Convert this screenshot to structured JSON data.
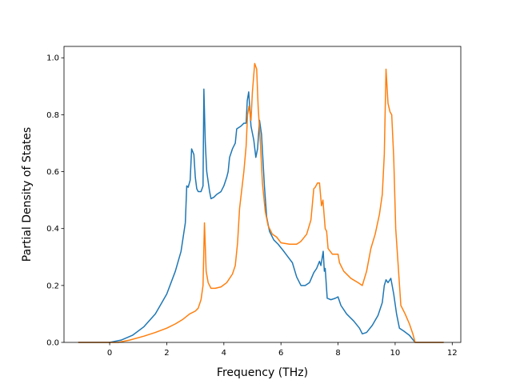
{
  "chart_data": {
    "type": "line",
    "title": "",
    "xlabel": "Frequency (THz)",
    "ylabel": "Partial Density of States",
    "xlim": [
      -1.6,
      12.3
    ],
    "ylim": [
      0.0,
      1.04
    ],
    "x_ticks": [
      0,
      2,
      4,
      6,
      8,
      10,
      12
    ],
    "x_tick_labels": [
      "0",
      "2",
      "4",
      "6",
      "8",
      "10",
      "12"
    ],
    "y_ticks": [
      0.0,
      0.2,
      0.4,
      0.6,
      0.8,
      1.0
    ],
    "y_tick_labels": [
      "0.0",
      "0.2",
      "0.4",
      "0.6",
      "0.8",
      "1.0"
    ],
    "grid": false,
    "legend": "none",
    "series": [
      {
        "color": "#1f77b4",
        "points": [
          [
            -1.1,
            0.0
          ],
          [
            0.0,
            0.0
          ],
          [
            0.4,
            0.008
          ],
          [
            0.8,
            0.025
          ],
          [
            1.2,
            0.055
          ],
          [
            1.6,
            0.1
          ],
          [
            2.0,
            0.17
          ],
          [
            2.3,
            0.25
          ],
          [
            2.5,
            0.32
          ],
          [
            2.65,
            0.42
          ],
          [
            2.7,
            0.55
          ],
          [
            2.75,
            0.545
          ],
          [
            2.82,
            0.57
          ],
          [
            2.87,
            0.68
          ],
          [
            2.95,
            0.66
          ],
          [
            3.0,
            0.58
          ],
          [
            3.05,
            0.54
          ],
          [
            3.1,
            0.53
          ],
          [
            3.2,
            0.53
          ],
          [
            3.27,
            0.55
          ],
          [
            3.3,
            0.89
          ],
          [
            3.35,
            0.7
          ],
          [
            3.4,
            0.6
          ],
          [
            3.5,
            0.53
          ],
          [
            3.55,
            0.505
          ],
          [
            3.65,
            0.51
          ],
          [
            3.75,
            0.52
          ],
          [
            3.9,
            0.53
          ],
          [
            4.0,
            0.55
          ],
          [
            4.1,
            0.58
          ],
          [
            4.15,
            0.6
          ],
          [
            4.2,
            0.65
          ],
          [
            4.3,
            0.68
          ],
          [
            4.4,
            0.7
          ],
          [
            4.45,
            0.75
          ],
          [
            4.6,
            0.76
          ],
          [
            4.7,
            0.77
          ],
          [
            4.78,
            0.77
          ],
          [
            4.82,
            0.85
          ],
          [
            4.87,
            0.88
          ],
          [
            4.95,
            0.76
          ],
          [
            5.05,
            0.71
          ],
          [
            5.12,
            0.65
          ],
          [
            5.18,
            0.68
          ],
          [
            5.25,
            0.78
          ],
          [
            5.32,
            0.73
          ],
          [
            5.42,
            0.55
          ],
          [
            5.5,
            0.44
          ],
          [
            5.6,
            0.39
          ],
          [
            5.75,
            0.36
          ],
          [
            5.9,
            0.345
          ],
          [
            6.1,
            0.32
          ],
          [
            6.25,
            0.3
          ],
          [
            6.4,
            0.28
          ],
          [
            6.55,
            0.23
          ],
          [
            6.7,
            0.2
          ],
          [
            6.85,
            0.2
          ],
          [
            7.0,
            0.21
          ],
          [
            7.15,
            0.245
          ],
          [
            7.25,
            0.26
          ],
          [
            7.35,
            0.285
          ],
          [
            7.4,
            0.27
          ],
          [
            7.48,
            0.32
          ],
          [
            7.52,
            0.25
          ],
          [
            7.55,
            0.26
          ],
          [
            7.62,
            0.155
          ],
          [
            7.75,
            0.15
          ],
          [
            7.9,
            0.155
          ],
          [
            8.0,
            0.16
          ],
          [
            8.1,
            0.13
          ],
          [
            8.3,
            0.1
          ],
          [
            8.55,
            0.075
          ],
          [
            8.75,
            0.05
          ],
          [
            8.85,
            0.03
          ],
          [
            9.0,
            0.035
          ],
          [
            9.2,
            0.06
          ],
          [
            9.4,
            0.095
          ],
          [
            9.55,
            0.14
          ],
          [
            9.62,
            0.2
          ],
          [
            9.68,
            0.22
          ],
          [
            9.75,
            0.21
          ],
          [
            9.85,
            0.225
          ],
          [
            9.95,
            0.17
          ],
          [
            10.05,
            0.1
          ],
          [
            10.15,
            0.05
          ],
          [
            10.3,
            0.04
          ],
          [
            10.5,
            0.025
          ],
          [
            10.7,
            0.0
          ],
          [
            11.7,
            0.0
          ]
        ]
      },
      {
        "color": "#ff7f0e",
        "points": [
          [
            -1.1,
            0.0
          ],
          [
            0.3,
            0.0
          ],
          [
            0.7,
            0.008
          ],
          [
            1.2,
            0.022
          ],
          [
            1.6,
            0.035
          ],
          [
            2.0,
            0.05
          ],
          [
            2.3,
            0.065
          ],
          [
            2.55,
            0.08
          ],
          [
            2.8,
            0.1
          ],
          [
            3.0,
            0.11
          ],
          [
            3.1,
            0.12
          ],
          [
            3.2,
            0.15
          ],
          [
            3.27,
            0.2
          ],
          [
            3.32,
            0.42
          ],
          [
            3.38,
            0.25
          ],
          [
            3.45,
            0.21
          ],
          [
            3.55,
            0.19
          ],
          [
            3.7,
            0.19
          ],
          [
            3.9,
            0.195
          ],
          [
            4.1,
            0.21
          ],
          [
            4.3,
            0.24
          ],
          [
            4.4,
            0.27
          ],
          [
            4.48,
            0.35
          ],
          [
            4.55,
            0.47
          ],
          [
            4.7,
            0.6
          ],
          [
            4.78,
            0.69
          ],
          [
            4.83,
            0.8
          ],
          [
            4.88,
            0.83
          ],
          [
            4.95,
            0.78
          ],
          [
            5.0,
            0.88
          ],
          [
            5.08,
            0.98
          ],
          [
            5.15,
            0.96
          ],
          [
            5.2,
            0.83
          ],
          [
            5.28,
            0.7
          ],
          [
            5.35,
            0.56
          ],
          [
            5.45,
            0.46
          ],
          [
            5.55,
            0.41
          ],
          [
            5.7,
            0.38
          ],
          [
            5.85,
            0.37
          ],
          [
            6.0,
            0.35
          ],
          [
            6.3,
            0.345
          ],
          [
            6.55,
            0.345
          ],
          [
            6.7,
            0.355
          ],
          [
            6.9,
            0.38
          ],
          [
            7.05,
            0.43
          ],
          [
            7.15,
            0.54
          ],
          [
            7.2,
            0.545
          ],
          [
            7.28,
            0.56
          ],
          [
            7.35,
            0.56
          ],
          [
            7.42,
            0.48
          ],
          [
            7.47,
            0.5
          ],
          [
            7.55,
            0.4
          ],
          [
            7.6,
            0.39
          ],
          [
            7.65,
            0.33
          ],
          [
            7.8,
            0.31
          ],
          [
            8.0,
            0.31
          ],
          [
            8.05,
            0.28
          ],
          [
            8.2,
            0.25
          ],
          [
            8.45,
            0.225
          ],
          [
            8.7,
            0.21
          ],
          [
            8.85,
            0.2
          ],
          [
            9.0,
            0.25
          ],
          [
            9.15,
            0.33
          ],
          [
            9.3,
            0.38
          ],
          [
            9.45,
            0.45
          ],
          [
            9.55,
            0.52
          ],
          [
            9.62,
            0.66
          ],
          [
            9.68,
            0.96
          ],
          [
            9.75,
            0.84
          ],
          [
            9.82,
            0.81
          ],
          [
            9.88,
            0.8
          ],
          [
            9.95,
            0.65
          ],
          [
            10.02,
            0.4
          ],
          [
            10.1,
            0.28
          ],
          [
            10.2,
            0.13
          ],
          [
            10.35,
            0.1
          ],
          [
            10.5,
            0.065
          ],
          [
            10.62,
            0.03
          ],
          [
            10.7,
            0.0
          ],
          [
            11.7,
            0.0
          ]
        ]
      }
    ]
  }
}
